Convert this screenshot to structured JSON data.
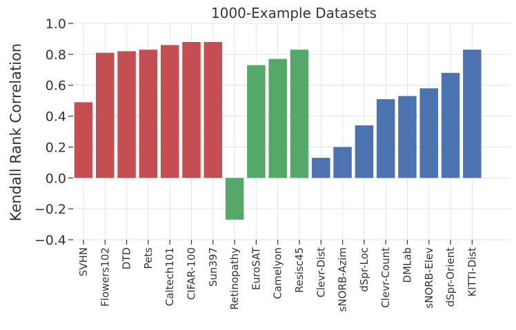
{
  "chart_data": {
    "type": "bar",
    "title": "1000-Example Datasets",
    "xlabel": "",
    "ylabel": "Kendall Rank Correlation",
    "ylim": [
      -0.4,
      1.0
    ],
    "yticks": [
      -0.4,
      -0.2,
      0.0,
      0.2,
      0.4,
      0.6,
      0.8,
      1.0
    ],
    "ytick_labels": [
      "−0.4",
      "−0.2",
      "0.0",
      "0.2",
      "0.4",
      "0.6",
      "0.8",
      "1.0"
    ],
    "grid": true,
    "legend": "none",
    "categories": [
      "SVHN",
      "Flowers102",
      "DTD",
      "Pets",
      "Caltech101",
      "CIFAR-100",
      "Sun397",
      "Retinopathy",
      "EuroSAT",
      "Camelyon",
      "Resisc45",
      "Clevr-Dist",
      "sNORB-Azim",
      "dSpr-Loc",
      "Clevr-Count",
      "DMLab",
      "sNORB-Elev",
      "dSpr-Orient",
      "KITTI-Dist"
    ],
    "values": [
      0.49,
      0.81,
      0.82,
      0.83,
      0.86,
      0.88,
      0.88,
      -0.27,
      0.73,
      0.77,
      0.83,
      0.13,
      0.2,
      0.34,
      0.51,
      0.53,
      0.58,
      0.68,
      0.83
    ],
    "bar_colors": [
      "#c44e52",
      "#c44e52",
      "#c44e52",
      "#c44e52",
      "#c44e52",
      "#c44e52",
      "#c44e52",
      "#55a868",
      "#55a868",
      "#55a868",
      "#55a868",
      "#4c72b0",
      "#4c72b0",
      "#4c72b0",
      "#4c72b0",
      "#4c72b0",
      "#4c72b0",
      "#4c72b0",
      "#4c72b0"
    ]
  }
}
